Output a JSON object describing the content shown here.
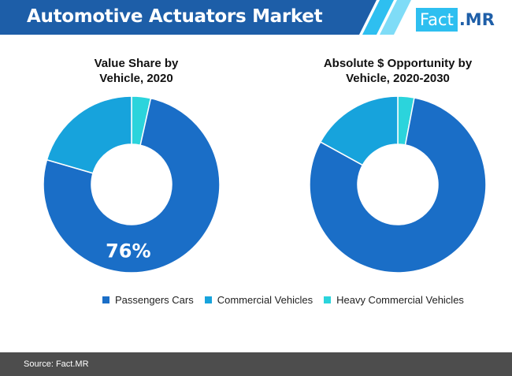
{
  "header": {
    "title": "Automotive Actuators Market"
  },
  "brand": {
    "part1": "Fact",
    "part2": ".MR"
  },
  "colors": {
    "header_dark": "#1d5ea8",
    "header_light": "#2ebff0",
    "passenger": "#1a6ec7",
    "commercial": "#17a3dc",
    "heavy": "#2bd4dc",
    "footer": "#4d4d4d"
  },
  "chart_data": [
    {
      "type": "pie",
      "title_lines": [
        "Value Share by",
        "Vehicle, 2020"
      ],
      "categories": [
        "Passengers Cars",
        "Commercial Vehicles",
        "Heavy Commercial Vehicles"
      ],
      "values": [
        76,
        20.5,
        3.5
      ],
      "data_labels": [
        {
          "category": "Passengers Cars",
          "text": "76%"
        }
      ]
    },
    {
      "type": "pie",
      "title_lines": [
        "Absolute $ Opportunity by",
        "Vehicle, 2020-2030"
      ],
      "categories": [
        "Passengers Cars",
        "Commercial Vehicles",
        "Heavy Commercial Vehicles"
      ],
      "values": [
        80,
        17,
        3
      ]
    }
  ],
  "legend": [
    {
      "label": "Passengers Cars",
      "color": "#1a6ec7"
    },
    {
      "label": "Commercial Vehicles",
      "color": "#17a3dc"
    },
    {
      "label": "Heavy Commercial Vehicles",
      "color": "#2bd4dc"
    }
  ],
  "footer": {
    "source": "Source: Fact.MR"
  }
}
